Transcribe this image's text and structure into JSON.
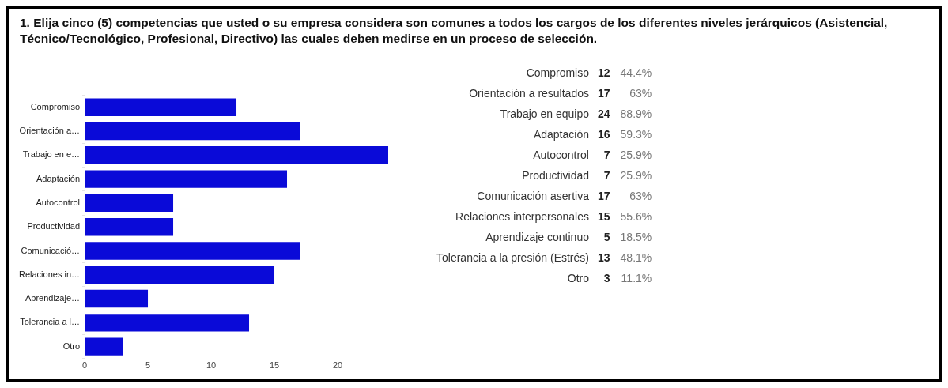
{
  "chart_data": [
    {
      "type": "bar",
      "orientation": "horizontal",
      "title": "1. Elija cinco (5) competencias que usted o su empresa considera son comunes a todos los cargos de los diferentes niveles jerárquicos (Asistencial, Técnico/Tecnológico, Profesional, Directivo) las cuales deben medirse en un proceso de selección.",
      "categories": [
        "Compromiso",
        "Orientación a…",
        "Trabajo en e…",
        "Adaptación",
        "Autocontrol",
        "Productividad",
        "Comunicació…",
        "Relaciones in…",
        "Aprendizaje…",
        "Tolerancia a l…",
        "Otro"
      ],
      "values": [
        12,
        17,
        24,
        16,
        7,
        7,
        17,
        15,
        5,
        13,
        3
      ],
      "color": "#0a0ad8",
      "xlim": [
        0,
        24
      ],
      "xticks": [
        0,
        5,
        10,
        15,
        20
      ],
      "grid": false,
      "legend": false
    },
    {
      "type": "other",
      "categories": [
        "Compromiso",
        "Orientación a resultados",
        "Trabajo en equipo",
        "Adaptación",
        "Autocontrol",
        "Productividad",
        "Comunicación asertiva",
        "Relaciones interpersonales",
        "Aprendizaje continuo",
        "Tolerancia a la presión (Estrés)",
        "Otro"
      ],
      "series": [
        {
          "values": [
            12,
            17,
            24,
            16,
            7,
            7,
            17,
            15,
            5,
            13,
            3
          ]
        },
        {
          "values": [
            44.4,
            63,
            88.9,
            59.3,
            25.9,
            25.9,
            63,
            55.6,
            18.5,
            48.1,
            11.1
          ],
          "value_labels": [
            "44.4%",
            "63%",
            "88.9%",
            "59.3%",
            "25.9%",
            "25.9%",
            "63%",
            "55.6%",
            "18.5%",
            "48.1%",
            "11.1%"
          ]
        }
      ],
      "data_labels": true
    }
  ]
}
